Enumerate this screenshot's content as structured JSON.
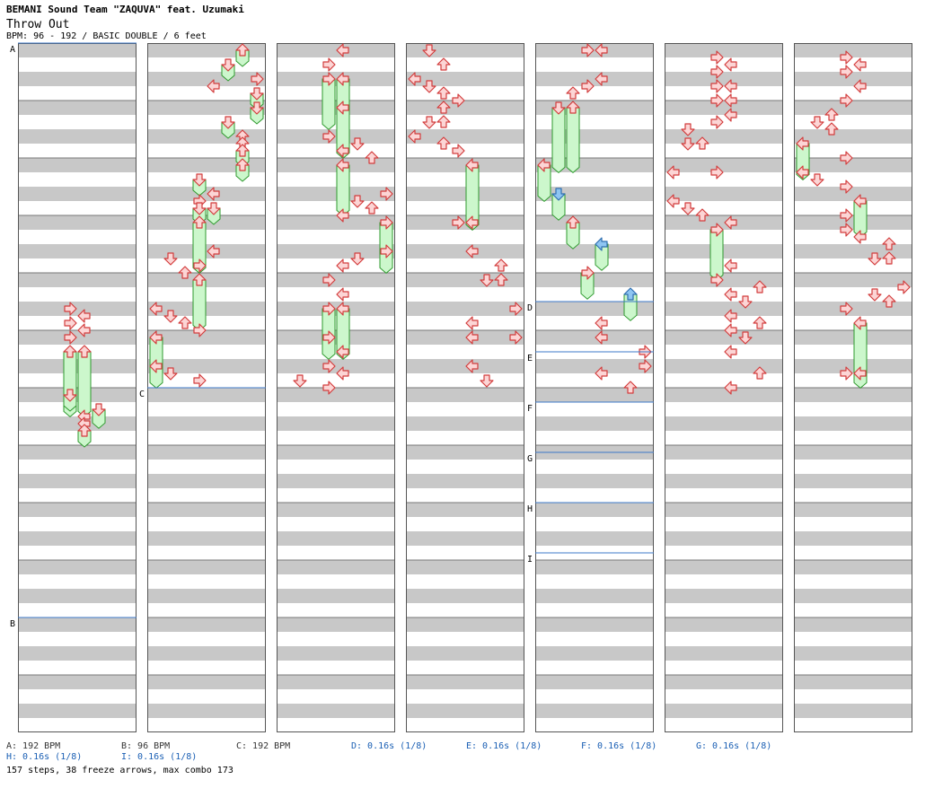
{
  "header": {
    "artist": "BEMANI Sound Team \"ZAQUVA\" feat. Uzumaki",
    "title": "Throw Out",
    "meta": "BPM: 96 - 192 / BASIC DOUBLE / 6 feet"
  },
  "colors": {
    "band_gray": "#c8c8c8",
    "arrow_fill": "#fcd5d5",
    "arrow_stroke": "#d23c3c",
    "freeze_fill": "#ccf7cc",
    "freeze_stroke": "#2e9a2e",
    "shock_fill": "#8ec5f2",
    "shock_stroke": "#2f6fb0",
    "marker_line": "#3c78c8"
  },
  "markers": [
    {
      "label": "A",
      "col": 0,
      "measure": 0
    },
    {
      "label": "B",
      "col": 0,
      "measure": 10
    },
    {
      "label": "C",
      "col": 1,
      "measure": 6
    },
    {
      "label": "D",
      "col": 4,
      "measure": 4.5
    },
    {
      "label": "E",
      "col": 4,
      "measure": 5.375
    },
    {
      "label": "F",
      "col": 4,
      "measure": 6.25
    },
    {
      "label": "G",
      "col": 4,
      "measure": 7.125
    },
    {
      "label": "H",
      "col": 4,
      "measure": 8
    },
    {
      "label": "I",
      "col": 4,
      "measure": 8.875
    }
  ],
  "legend": [
    {
      "text": "A: 192 BPM",
      "type": "bpm",
      "row": 0,
      "slot": 0
    },
    {
      "text": "B: 96 BPM",
      "type": "bpm",
      "row": 0,
      "slot": 1
    },
    {
      "text": "C: 192 BPM",
      "type": "bpm",
      "row": 0,
      "slot": 2
    },
    {
      "text": "D: 0.16s (1/8)",
      "type": "stop",
      "row": 0,
      "slot": 3
    },
    {
      "text": "E: 0.16s (1/8)",
      "type": "stop",
      "row": 0,
      "slot": 4
    },
    {
      "text": "F: 0.16s (1/8)",
      "type": "stop",
      "row": 0,
      "slot": 5
    },
    {
      "text": "G: 0.16s (1/8)",
      "type": "stop",
      "row": 0,
      "slot": 6
    },
    {
      "text": "H: 0.16s (1/8)",
      "type": "stop",
      "row": 1,
      "slot": 0
    },
    {
      "text": "I: 0.16s (1/8)",
      "type": "stop",
      "row": 1,
      "slot": 1
    }
  ],
  "summary": "157 steps, 38 freeze arrows, max combo 173",
  "notes": [
    {
      "col": 0,
      "b": 36,
      "lane": 3,
      "dir": "right"
    },
    {
      "col": 0,
      "b": 37,
      "lane": 4,
      "dir": "left"
    },
    {
      "col": 0,
      "b": 38,
      "lane": 3,
      "dir": "right"
    },
    {
      "col": 0,
      "b": 39,
      "lane": 4,
      "dir": "left"
    },
    {
      "col": 0,
      "b": 40,
      "lane": 3,
      "dir": "right"
    },
    {
      "col": 0,
      "b": 42,
      "lane": 3,
      "dir": "up",
      "len": 4.4
    },
    {
      "col": 0,
      "b": 42,
      "lane": 4,
      "dir": "up",
      "len": 4.4
    },
    {
      "col": 0,
      "b": 48,
      "lane": 3,
      "dir": "down",
      "len": 1
    },
    {
      "col": 0,
      "b": 50,
      "lane": 5,
      "dir": "down",
      "len": 1.2
    },
    {
      "col": 0,
      "b": 51,
      "lane": 4,
      "dir": "left"
    },
    {
      "col": 0,
      "b": 52,
      "lane": 4,
      "dir": "left"
    },
    {
      "col": 0,
      "b": 53,
      "lane": 4,
      "dir": "up",
      "len": 1
    },
    {
      "col": 1,
      "b": 0,
      "lane": 6,
      "dir": "up",
      "len": 1
    },
    {
      "col": 1,
      "b": 2,
      "lane": 5,
      "dir": "down",
      "len": 1
    },
    {
      "col": 1,
      "b": 4,
      "lane": 7,
      "dir": "right"
    },
    {
      "col": 1,
      "b": 5,
      "lane": 4,
      "dir": "left"
    },
    {
      "col": 1,
      "b": 6,
      "lane": 7,
      "dir": "down",
      "len": 1
    },
    {
      "col": 1,
      "b": 8,
      "lane": 7,
      "dir": "down",
      "len": 1
    },
    {
      "col": 1,
      "b": 10,
      "lane": 5,
      "dir": "down",
      "len": 1
    },
    {
      "col": 1,
      "b": 12,
      "lane": 6,
      "dir": "up"
    },
    {
      "col": 1,
      "b": 13,
      "lane": 6,
      "dir": "up"
    },
    {
      "col": 1,
      "b": 14,
      "lane": 6,
      "dir": "up",
      "len": 1
    },
    {
      "col": 1,
      "b": 16,
      "lane": 6,
      "dir": "up",
      "len": 1
    },
    {
      "col": 1,
      "b": 18,
      "lane": 3,
      "dir": "down",
      "len": 1
    },
    {
      "col": 1,
      "b": 20,
      "lane": 4,
      "dir": "left"
    },
    {
      "col": 1,
      "b": 21,
      "lane": 3,
      "dir": "right"
    },
    {
      "col": 1,
      "b": 22,
      "lane": 3,
      "dir": "down",
      "len": 1
    },
    {
      "col": 1,
      "b": 22,
      "lane": 4,
      "dir": "down",
      "len": 1
    },
    {
      "col": 1,
      "b": 24,
      "lane": 3,
      "dir": "up",
      "len": 3.4
    },
    {
      "col": 1,
      "b": 28,
      "lane": 4,
      "dir": "left"
    },
    {
      "col": 1,
      "b": 29,
      "lane": 1,
      "dir": "down"
    },
    {
      "col": 1,
      "b": 30,
      "lane": 3,
      "dir": "right"
    },
    {
      "col": 1,
      "b": 31,
      "lane": 2,
      "dir": "up"
    },
    {
      "col": 1,
      "b": 32,
      "lane": 3,
      "dir": "up",
      "len": 3.4
    },
    {
      "col": 1,
      "b": 36,
      "lane": 0,
      "dir": "left"
    },
    {
      "col": 1,
      "b": 37,
      "lane": 1,
      "dir": "down"
    },
    {
      "col": 1,
      "b": 38,
      "lane": 2,
      "dir": "up"
    },
    {
      "col": 1,
      "b": 39,
      "lane": 3,
      "dir": "right"
    },
    {
      "col": 1,
      "b": 40,
      "lane": 0,
      "dir": "left",
      "len": 3.4
    },
    {
      "col": 1,
      "b": 44,
      "lane": 0,
      "dir": "left"
    },
    {
      "col": 1,
      "b": 45,
      "lane": 1,
      "dir": "down"
    },
    {
      "col": 1,
      "b": 46,
      "lane": 3,
      "dir": "right"
    },
    {
      "col": 2,
      "b": 0,
      "lane": 4,
      "dir": "left"
    },
    {
      "col": 2,
      "b": 2,
      "lane": 3,
      "dir": "right"
    },
    {
      "col": 2,
      "b": 4,
      "lane": 3,
      "dir": "right",
      "len": 3.4
    },
    {
      "col": 2,
      "b": 4,
      "lane": 4,
      "dir": "left",
      "len": 3.4
    },
    {
      "col": 2,
      "b": 8,
      "lane": 4,
      "dir": "left",
      "len": 3.4
    },
    {
      "col": 2,
      "b": 12,
      "lane": 3,
      "dir": "right"
    },
    {
      "col": 2,
      "b": 13,
      "lane": 5,
      "dir": "down"
    },
    {
      "col": 2,
      "b": 14,
      "lane": 4,
      "dir": "left"
    },
    {
      "col": 2,
      "b": 15,
      "lane": 6,
      "dir": "up"
    },
    {
      "col": 2,
      "b": 16,
      "lane": 4,
      "dir": "left",
      "len": 3.4
    },
    {
      "col": 2,
      "b": 20,
      "lane": 7,
      "dir": "right"
    },
    {
      "col": 2,
      "b": 21,
      "lane": 5,
      "dir": "down"
    },
    {
      "col": 2,
      "b": 22,
      "lane": 6,
      "dir": "up"
    },
    {
      "col": 2,
      "b": 23,
      "lane": 4,
      "dir": "left"
    },
    {
      "col": 2,
      "b": 24,
      "lane": 7,
      "dir": "right",
      "len": 3.4
    },
    {
      "col": 2,
      "b": 28,
      "lane": 7,
      "dir": "right"
    },
    {
      "col": 2,
      "b": 29,
      "lane": 5,
      "dir": "down"
    },
    {
      "col": 2,
      "b": 30,
      "lane": 4,
      "dir": "left"
    },
    {
      "col": 2,
      "b": 32,
      "lane": 3,
      "dir": "right"
    },
    {
      "col": 2,
      "b": 34,
      "lane": 4,
      "dir": "left"
    },
    {
      "col": 2,
      "b": 36,
      "lane": 3,
      "dir": "right",
      "len": 3.4
    },
    {
      "col": 2,
      "b": 36,
      "lane": 4,
      "dir": "left",
      "len": 3.4
    },
    {
      "col": 2,
      "b": 40,
      "lane": 3,
      "dir": "right"
    },
    {
      "col": 2,
      "b": 42,
      "lane": 4,
      "dir": "left"
    },
    {
      "col": 2,
      "b": 44,
      "lane": 3,
      "dir": "right"
    },
    {
      "col": 2,
      "b": 45,
      "lane": 4,
      "dir": "left"
    },
    {
      "col": 2,
      "b": 46,
      "lane": 1,
      "dir": "down"
    },
    {
      "col": 2,
      "b": 47,
      "lane": 3,
      "dir": "right"
    },
    {
      "col": 3,
      "b": 0,
      "lane": 1,
      "dir": "down"
    },
    {
      "col": 3,
      "b": 2,
      "lane": 2,
      "dir": "up"
    },
    {
      "col": 3,
      "b": 4,
      "lane": 0,
      "dir": "left"
    },
    {
      "col": 3,
      "b": 5,
      "lane": 1,
      "dir": "down"
    },
    {
      "col": 3,
      "b": 6,
      "lane": 2,
      "dir": "up"
    },
    {
      "col": 3,
      "b": 7,
      "lane": 3,
      "dir": "right"
    },
    {
      "col": 3,
      "b": 8,
      "lane": 2,
      "dir": "up"
    },
    {
      "col": 3,
      "b": 10,
      "lane": 1,
      "dir": "down"
    },
    {
      "col": 3,
      "b": 10,
      "lane": 2,
      "dir": "up"
    },
    {
      "col": 3,
      "b": 12,
      "lane": 0,
      "dir": "left"
    },
    {
      "col": 3,
      "b": 13,
      "lane": 2,
      "dir": "up"
    },
    {
      "col": 3,
      "b": 14,
      "lane": 3,
      "dir": "right"
    },
    {
      "col": 3,
      "b": 16,
      "lane": 4,
      "dir": "left",
      "len": 4.4
    },
    {
      "col": 3,
      "b": 24,
      "lane": 3,
      "dir": "right"
    },
    {
      "col": 3,
      "b": 24,
      "lane": 4,
      "dir": "left"
    },
    {
      "col": 3,
      "b": 28,
      "lane": 4,
      "dir": "left"
    },
    {
      "col": 3,
      "b": 30,
      "lane": 6,
      "dir": "up"
    },
    {
      "col": 3,
      "b": 32,
      "lane": 5,
      "dir": "down"
    },
    {
      "col": 3,
      "b": 32,
      "lane": 6,
      "dir": "up"
    },
    {
      "col": 3,
      "b": 36,
      "lane": 7,
      "dir": "right"
    },
    {
      "col": 3,
      "b": 38,
      "lane": 4,
      "dir": "left"
    },
    {
      "col": 3,
      "b": 40,
      "lane": 4,
      "dir": "left"
    },
    {
      "col": 3,
      "b": 40,
      "lane": 7,
      "dir": "right"
    },
    {
      "col": 3,
      "b": 44,
      "lane": 4,
      "dir": "left"
    },
    {
      "col": 3,
      "b": 46,
      "lane": 5,
      "dir": "down"
    },
    {
      "col": 4,
      "b": 0,
      "lane": 3,
      "dir": "right"
    },
    {
      "col": 4,
      "b": 0,
      "lane": 4,
      "dir": "left"
    },
    {
      "col": 4,
      "b": 4,
      "lane": 4,
      "dir": "left"
    },
    {
      "col": 4,
      "b": 5,
      "lane": 3,
      "dir": "right"
    },
    {
      "col": 4,
      "b": 6,
      "lane": 2,
      "dir": "up"
    },
    {
      "col": 4,
      "b": 8,
      "lane": 1,
      "dir": "down",
      "len": 4.4
    },
    {
      "col": 4,
      "b": 8,
      "lane": 2,
      "dir": "up",
      "len": 4.4
    },
    {
      "col": 4,
      "b": 16,
      "lane": 0,
      "dir": "left",
      "len": 2.4
    },
    {
      "col": 4,
      "b": 20,
      "lane": 1,
      "dir": "down",
      "len": 1.7,
      "shock": true
    },
    {
      "col": 4,
      "b": 24,
      "lane": 2,
      "dir": "up",
      "len": 1.7
    },
    {
      "col": 4,
      "b": 27,
      "lane": 4,
      "dir": "left",
      "len": 1.7,
      "shock": true
    },
    {
      "col": 4,
      "b": 31,
      "lane": 3,
      "dir": "right",
      "len": 1.7
    },
    {
      "col": 4,
      "b": 34,
      "lane": 6,
      "dir": "up",
      "len": 1.7,
      "shock": true
    },
    {
      "col": 4,
      "b": 38,
      "lane": 4,
      "dir": "left"
    },
    {
      "col": 4,
      "b": 40,
      "lane": 4,
      "dir": "left"
    },
    {
      "col": 4,
      "b": 42,
      "lane": 7,
      "dir": "right"
    },
    {
      "col": 4,
      "b": 44,
      "lane": 7,
      "dir": "right"
    },
    {
      "col": 4,
      "b": 45,
      "lane": 4,
      "dir": "left"
    },
    {
      "col": 4,
      "b": 47,
      "lane": 6,
      "dir": "up"
    },
    {
      "col": 5,
      "b": 1,
      "lane": 3,
      "dir": "right"
    },
    {
      "col": 5,
      "b": 2,
      "lane": 4,
      "dir": "left"
    },
    {
      "col": 5,
      "b": 3,
      "lane": 3,
      "dir": "right"
    },
    {
      "col": 5,
      "b": 5,
      "lane": 3,
      "dir": "right"
    },
    {
      "col": 5,
      "b": 5,
      "lane": 4,
      "dir": "left"
    },
    {
      "col": 5,
      "b": 7,
      "lane": 3,
      "dir": "right"
    },
    {
      "col": 5,
      "b": 7,
      "lane": 4,
      "dir": "left"
    },
    {
      "col": 5,
      "b": 9,
      "lane": 4,
      "dir": "left"
    },
    {
      "col": 5,
      "b": 10,
      "lane": 3,
      "dir": "right"
    },
    {
      "col": 5,
      "b": 11,
      "lane": 1,
      "dir": "down"
    },
    {
      "col": 5,
      "b": 13,
      "lane": 1,
      "dir": "down"
    },
    {
      "col": 5,
      "b": 13,
      "lane": 2,
      "dir": "up"
    },
    {
      "col": 5,
      "b": 17,
      "lane": 0,
      "dir": "left"
    },
    {
      "col": 5,
      "b": 17,
      "lane": 3,
      "dir": "right"
    },
    {
      "col": 5,
      "b": 21,
      "lane": 0,
      "dir": "left"
    },
    {
      "col": 5,
      "b": 22,
      "lane": 1,
      "dir": "down"
    },
    {
      "col": 5,
      "b": 23,
      "lane": 2,
      "dir": "up"
    },
    {
      "col": 5,
      "b": 24,
      "lane": 4,
      "dir": "left"
    },
    {
      "col": 5,
      "b": 25,
      "lane": 3,
      "dir": "right",
      "len": 3.4
    },
    {
      "col": 5,
      "b": 30,
      "lane": 4,
      "dir": "left"
    },
    {
      "col": 5,
      "b": 32,
      "lane": 3,
      "dir": "right"
    },
    {
      "col": 5,
      "b": 33,
      "lane": 6,
      "dir": "up"
    },
    {
      "col": 5,
      "b": 34,
      "lane": 4,
      "dir": "left"
    },
    {
      "col": 5,
      "b": 35,
      "lane": 5,
      "dir": "down"
    },
    {
      "col": 5,
      "b": 37,
      "lane": 4,
      "dir": "left"
    },
    {
      "col": 5,
      "b": 38,
      "lane": 6,
      "dir": "up"
    },
    {
      "col": 5,
      "b": 39,
      "lane": 4,
      "dir": "left"
    },
    {
      "col": 5,
      "b": 40,
      "lane": 5,
      "dir": "down"
    },
    {
      "col": 5,
      "b": 42,
      "lane": 4,
      "dir": "left"
    },
    {
      "col": 5,
      "b": 45,
      "lane": 6,
      "dir": "up"
    },
    {
      "col": 5,
      "b": 47,
      "lane": 4,
      "dir": "left"
    },
    {
      "col": 6,
      "b": 1,
      "lane": 3,
      "dir": "right"
    },
    {
      "col": 6,
      "b": 2,
      "lane": 4,
      "dir": "left"
    },
    {
      "col": 6,
      "b": 3,
      "lane": 3,
      "dir": "right"
    },
    {
      "col": 6,
      "b": 5,
      "lane": 4,
      "dir": "left"
    },
    {
      "col": 6,
      "b": 7,
      "lane": 3,
      "dir": "right"
    },
    {
      "col": 6,
      "b": 9,
      "lane": 2,
      "dir": "up"
    },
    {
      "col": 6,
      "b": 10,
      "lane": 1,
      "dir": "down"
    },
    {
      "col": 6,
      "b": 11,
      "lane": 2,
      "dir": "up"
    },
    {
      "col": 6,
      "b": 13,
      "lane": 0,
      "dir": "left",
      "len": 2.4
    },
    {
      "col": 6,
      "b": 15,
      "lane": 3,
      "dir": "right"
    },
    {
      "col": 6,
      "b": 17,
      "lane": 0,
      "dir": "left"
    },
    {
      "col": 6,
      "b": 18,
      "lane": 1,
      "dir": "down"
    },
    {
      "col": 6,
      "b": 19,
      "lane": 3,
      "dir": "right"
    },
    {
      "col": 6,
      "b": 21,
      "lane": 4,
      "dir": "left",
      "len": 2.4
    },
    {
      "col": 6,
      "b": 23,
      "lane": 3,
      "dir": "right"
    },
    {
      "col": 6,
      "b": 25,
      "lane": 3,
      "dir": "right"
    },
    {
      "col": 6,
      "b": 26,
      "lane": 4,
      "dir": "left"
    },
    {
      "col": 6,
      "b": 27,
      "lane": 6,
      "dir": "up"
    },
    {
      "col": 6,
      "b": 29,
      "lane": 5,
      "dir": "down"
    },
    {
      "col": 6,
      "b": 29,
      "lane": 6,
      "dir": "up"
    },
    {
      "col": 6,
      "b": 33,
      "lane": 7,
      "dir": "right"
    },
    {
      "col": 6,
      "b": 34,
      "lane": 5,
      "dir": "down"
    },
    {
      "col": 6,
      "b": 35,
      "lane": 6,
      "dir": "up"
    },
    {
      "col": 6,
      "b": 36,
      "lane": 3,
      "dir": "right"
    },
    {
      "col": 6,
      "b": 38,
      "lane": 4,
      "dir": "left",
      "len": 4.4
    },
    {
      "col": 6,
      "b": 45,
      "lane": 3,
      "dir": "right"
    },
    {
      "col": 6,
      "b": 45,
      "lane": 4,
      "dir": "left"
    }
  ]
}
